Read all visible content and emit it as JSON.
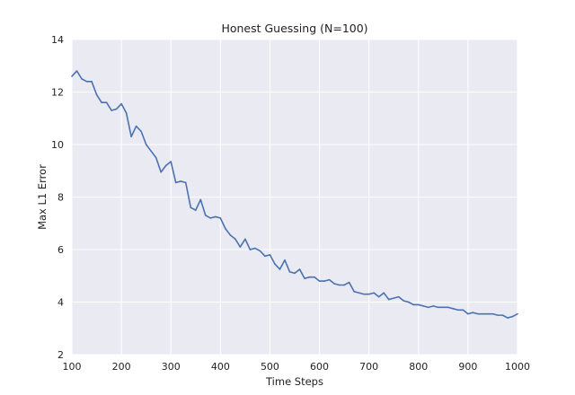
{
  "chart_data": {
    "type": "line",
    "title": "Honest Guessing (N=100)",
    "xlabel": "Time Steps",
    "ylabel": "Max L1 Error",
    "xlim": [
      100,
      1000
    ],
    "ylim": [
      2,
      14
    ],
    "xticks": [
      100,
      200,
      300,
      400,
      500,
      600,
      700,
      800,
      900,
      1000
    ],
    "yticks": [
      2,
      4,
      6,
      8,
      10,
      12,
      14
    ],
    "grid": true,
    "background": "#EAEAF2",
    "line_color": "#4C72B0",
    "series": [
      {
        "x": [
          100,
          110,
          120,
          130,
          140,
          150,
          160,
          170,
          180,
          190,
          200,
          210,
          220,
          230,
          240,
          250,
          260,
          270,
          280,
          290,
          300,
          310,
          320,
          330,
          340,
          350,
          360,
          370,
          380,
          390,
          400,
          410,
          420,
          430,
          440,
          450,
          460,
          470,
          480,
          490,
          500,
          510,
          520,
          530,
          540,
          550,
          560,
          570,
          580,
          590,
          600,
          610,
          620,
          630,
          640,
          650,
          660,
          670,
          680,
          690,
          700,
          710,
          720,
          730,
          740,
          750,
          760,
          770,
          780,
          790,
          800,
          810,
          820,
          830,
          840,
          850,
          860,
          870,
          880,
          890,
          900,
          910,
          920,
          930,
          940,
          950,
          960,
          970,
          980,
          990,
          1000
        ],
        "y": [
          12.6,
          12.8,
          12.5,
          12.4,
          12.4,
          11.9,
          11.6,
          11.6,
          11.3,
          11.35,
          11.55,
          11.2,
          10.3,
          10.7,
          10.5,
          10.0,
          9.75,
          9.5,
          8.95,
          9.2,
          9.35,
          8.55,
          8.6,
          8.55,
          7.6,
          7.5,
          7.9,
          7.3,
          7.2,
          7.25,
          7.2,
          6.8,
          6.55,
          6.4,
          6.1,
          6.4,
          6.0,
          6.05,
          5.95,
          5.75,
          5.8,
          5.45,
          5.25,
          5.6,
          5.15,
          5.1,
          5.25,
          4.9,
          4.95,
          4.95,
          4.8,
          4.8,
          4.85,
          4.7,
          4.65,
          4.65,
          4.75,
          4.4,
          4.35,
          4.3,
          4.3,
          4.35,
          4.2,
          4.35,
          4.1,
          4.15,
          4.2,
          4.05,
          4.0,
          3.9,
          3.9,
          3.85,
          3.8,
          3.85,
          3.8,
          3.8,
          3.8,
          3.75,
          3.7,
          3.7,
          3.55,
          3.6,
          3.55,
          3.55,
          3.55,
          3.55,
          3.5,
          3.5,
          3.4,
          3.45,
          3.55
        ]
      }
    ]
  }
}
